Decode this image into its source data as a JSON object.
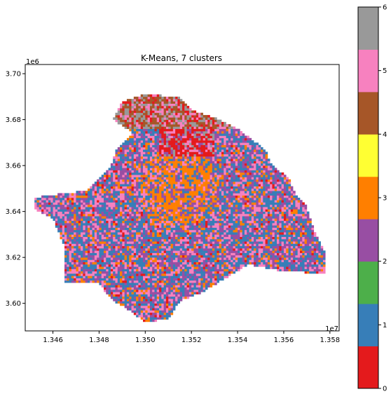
{
  "chart_data": [
    {
      "type": "heatmap",
      "title": "K-Means, 7 clusters",
      "xlabel": "",
      "ylabel": "",
      "xlim": [
        13448000,
        13584000
      ],
      "ylim": [
        3588000,
        3704000
      ],
      "x_ticks": [
        13460000,
        13480000,
        13500000,
        13520000,
        13540000,
        13560000,
        13580000
      ],
      "x_tick_labels": [
        "1.346",
        "1.348",
        "1.350",
        "1.352",
        "1.354",
        "1.356",
        "1.358"
      ],
      "x_offset_label": "1e7",
      "y_ticks": [
        3600000,
        3620000,
        3640000,
        3660000,
        3680000,
        3700000
      ],
      "y_tick_labels": [
        "3.60",
        "3.62",
        "3.64",
        "3.66",
        "3.68",
        "3.70"
      ],
      "y_offset_label": "1e6",
      "grid": false,
      "cell_size": 1000,
      "description_region_shape": "irregular city polygon, denser orange/red in center-north",
      "clusters": [
        0,
        1,
        2,
        3,
        4,
        5,
        6
      ]
    },
    {
      "type": "colorbar",
      "range": [
        0,
        6
      ],
      "ticks": [
        0,
        1,
        2,
        3,
        4,
        5,
        6
      ],
      "tick_labels": [
        "0",
        "1",
        "2",
        "3",
        "4",
        "5",
        "6"
      ],
      "colors": [
        "#e41a1c",
        "#377eb8",
        "#4daf4a",
        "#ff7f00",
        "#ffff33",
        "#a65628",
        "#f781bf",
        "#999999"
      ]
    }
  ],
  "palette": {
    "0": "#e41a1c",
    "1": "#377eb8",
    "2": "#984ea3",
    "3": "#ff7f00",
    "4": "#a65628",
    "5": "#f781bf",
    "6": "#999999"
  },
  "colorbar_band_colors": [
    "#e41a1c",
    "#377eb8",
    "#4daf4a",
    "#984ea3",
    "#ff7f00",
    "#ffff33",
    "#a65628",
    "#f781bf",
    "#999999"
  ]
}
